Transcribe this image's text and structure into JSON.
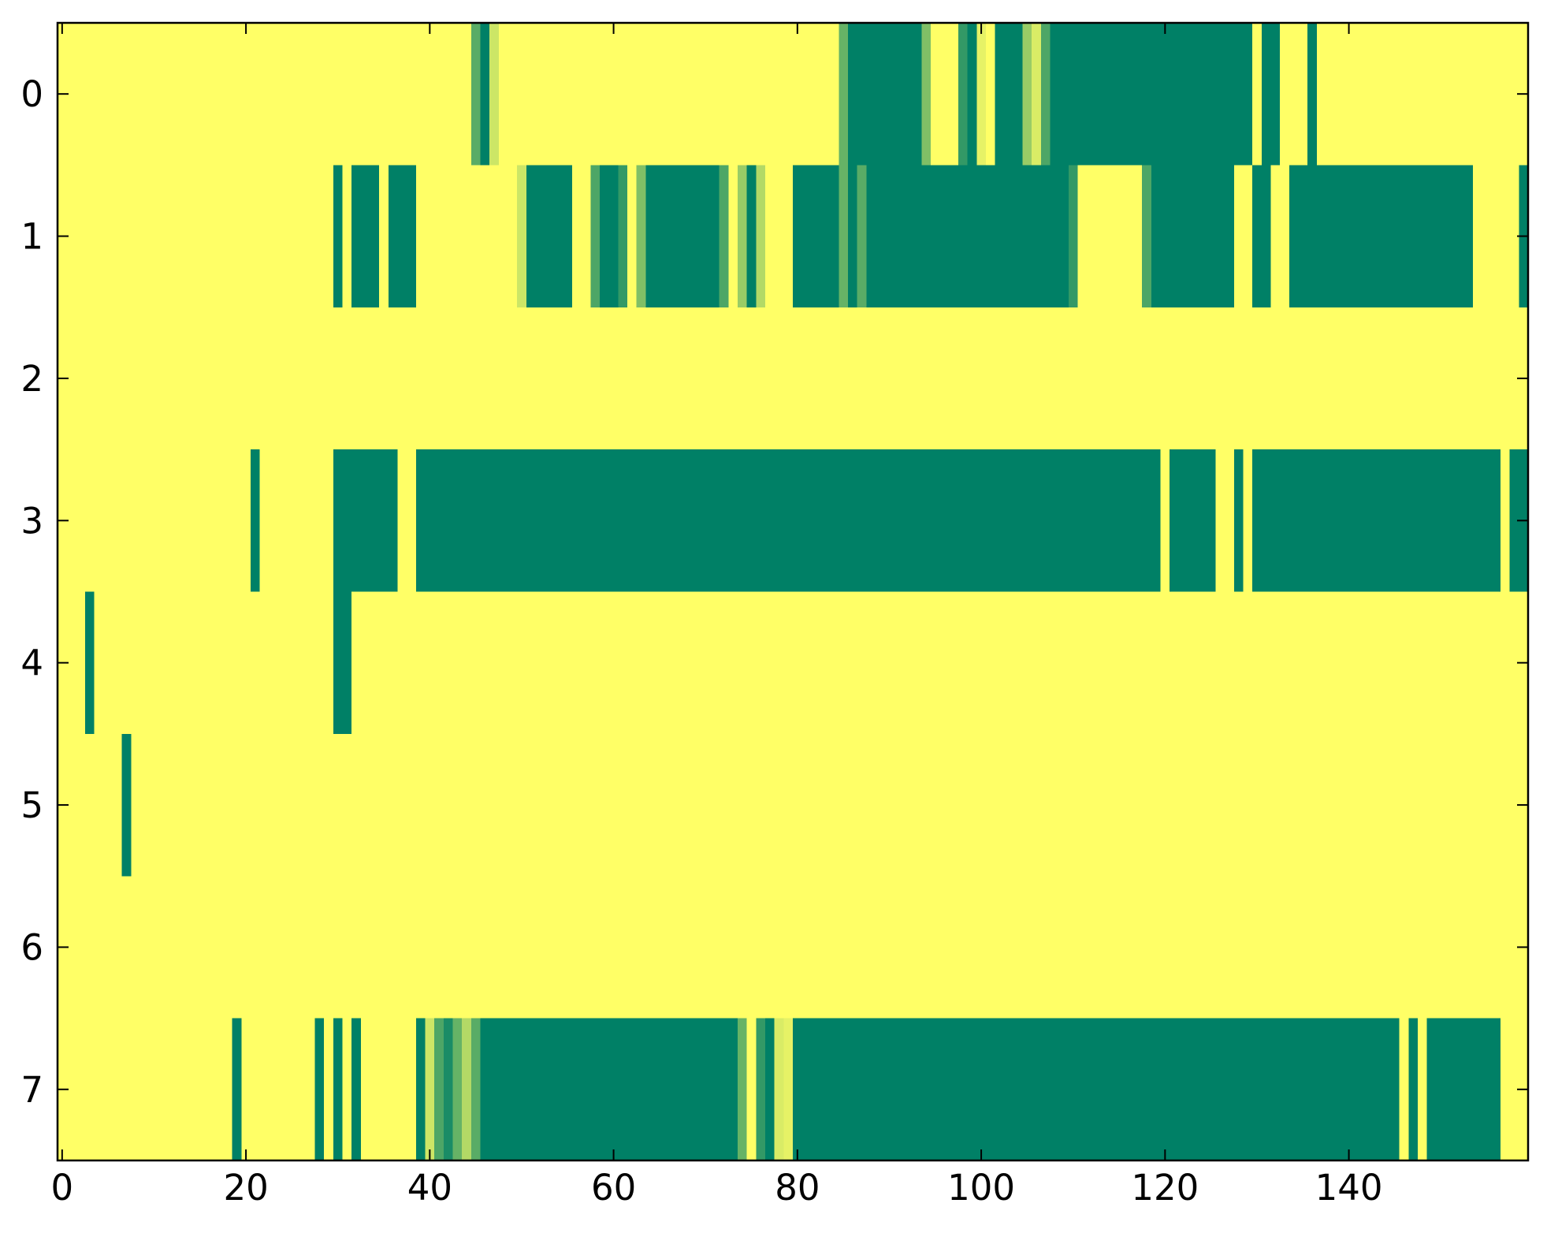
{
  "chart_data": {
    "type": "heatmap",
    "colormap": "summer",
    "xlim": [
      -0.5,
      159.5
    ],
    "ylim": [
      7.5,
      -0.5
    ],
    "xticks": [
      0,
      20,
      40,
      60,
      80,
      100,
      120,
      140
    ],
    "yticks": [
      0,
      1,
      2,
      3,
      4,
      5,
      6,
      7
    ],
    "z": [
      [
        1,
        1,
        1,
        1,
        1,
        1,
        1,
        1,
        1,
        1,
        1,
        1,
        1,
        1,
        1,
        1,
        1,
        1,
        1,
        1,
        1,
        1,
        1,
        1,
        1,
        1,
        1,
        1,
        1,
        1,
        1,
        1,
        1,
        1,
        1,
        1,
        1,
        1,
        1,
        1,
        1,
        1,
        1,
        1,
        1,
        0.35,
        0,
        0.8,
        1,
        1,
        1,
        1,
        1,
        1,
        1,
        1,
        1,
        1,
        1,
        1,
        1,
        1,
        1,
        1,
        1,
        1,
        1,
        1,
        1,
        1,
        1,
        1,
        1,
        1,
        1,
        1,
        1,
        1,
        1,
        1,
        1,
        1,
        1,
        1,
        1,
        0.4,
        0,
        0,
        0,
        0,
        0,
        0,
        0,
        0,
        0.5,
        1,
        1,
        1,
        0.2,
        0,
        0.9,
        1,
        0,
        0,
        0,
        0.6,
        0.85,
        0.3,
        0,
        0,
        0,
        0,
        0,
        0,
        0,
        0,
        0,
        0,
        0,
        0,
        0,
        0,
        0,
        0,
        0,
        0,
        0,
        0,
        0,
        0,
        1,
        0,
        0,
        1,
        1,
        1,
        0,
        1,
        1,
        1,
        1,
        1,
        1,
        1,
        1,
        1,
        1,
        1,
        1,
        1,
        1,
        1,
        1,
        1,
        1,
        1,
        1,
        1,
        1,
        1
      ],
      [
        1,
        1,
        1,
        1,
        1,
        1,
        1,
        1,
        1,
        1,
        1,
        1,
        1,
        1,
        1,
        1,
        1,
        1,
        1,
        1,
        1,
        1,
        1,
        1,
        1,
        1,
        1,
        1,
        1,
        1,
        0,
        1,
        0,
        0,
        0,
        1,
        0,
        0,
        0,
        1,
        1,
        1,
        1,
        1,
        1,
        1,
        1,
        1,
        1,
        1,
        0.8,
        0,
        0,
        0,
        0,
        0,
        1,
        1,
        0.3,
        0,
        0,
        0.2,
        1,
        0.5,
        0,
        0,
        0,
        0,
        0,
        0,
        0,
        0,
        0.3,
        1,
        0.6,
        0,
        0.7,
        1,
        1,
        1,
        0,
        0,
        0,
        0,
        0,
        0.4,
        0,
        0.35,
        0,
        0,
        0,
        0,
        0,
        0,
        0,
        0,
        0,
        0,
        0,
        0,
        0,
        0,
        0,
        0,
        0,
        0,
        0,
        0,
        0,
        0,
        0.2,
        1,
        1,
        1,
        1,
        1,
        1,
        1,
        0.3,
        0,
        0,
        0,
        0,
        0,
        0,
        0,
        0,
        0,
        1,
        1,
        0,
        0,
        1,
        1,
        0,
        0,
        0,
        0,
        0,
        0,
        0,
        0,
        0,
        0,
        0,
        0,
        0,
        0,
        0,
        0,
        0,
        0,
        0,
        0,
        1,
        1,
        1,
        1,
        1,
        0
      ],
      [
        1,
        1,
        1,
        1,
        1,
        1,
        1,
        1,
        1,
        1,
        1,
        1,
        1,
        1,
        1,
        1,
        1,
        1,
        1,
        1,
        1,
        1,
        1,
        1,
        1,
        1,
        1,
        1,
        1,
        1,
        1,
        1,
        1,
        1,
        1,
        1,
        1,
        1,
        1,
        1,
        1,
        1,
        1,
        1,
        1,
        1,
        1,
        1,
        1,
        1,
        1,
        1,
        1,
        1,
        1,
        1,
        1,
        1,
        1,
        1,
        1,
        1,
        1,
        1,
        1,
        1,
        1,
        1,
        1,
        1,
        1,
        1,
        1,
        1,
        1,
        1,
        1,
        1,
        1,
        1,
        1,
        1,
        1,
        1,
        1,
        1,
        1,
        1,
        1,
        1,
        1,
        1,
        1,
        1,
        1,
        1,
        1,
        1,
        1,
        1,
        1,
        1,
        1,
        1,
        1,
        1,
        1,
        1,
        1,
        1,
        1,
        1,
        1,
        1,
        1,
        1,
        1,
        1,
        1,
        1,
        1,
        1,
        1,
        1,
        1,
        1,
        1,
        1,
        1,
        1,
        1,
        1,
        1,
        1,
        1,
        1,
        1,
        1,
        1,
        1,
        1,
        1,
        1,
        1,
        1,
        1,
        1,
        1,
        1,
        1,
        1,
        1,
        1,
        1,
        1,
        1,
        1,
        1,
        1,
        1
      ],
      [
        1,
        1,
        1,
        1,
        1,
        1,
        1,
        1,
        1,
        1,
        1,
        1,
        1,
        1,
        1,
        1,
        1,
        1,
        1,
        1,
        1,
        0,
        1,
        1,
        1,
        1,
        1,
        1,
        1,
        1,
        0,
        0,
        0,
        0,
        0,
        0,
        0,
        1,
        1,
        0,
        0,
        0,
        0,
        0,
        0,
        0,
        0,
        0,
        0,
        0,
        0,
        0,
        0,
        0,
        0,
        0,
        0,
        0,
        0,
        0,
        0,
        0,
        0,
        0,
        0,
        0,
        0,
        0,
        0,
        0,
        0,
        0,
        0,
        0,
        0,
        0,
        0,
        0,
        0,
        0,
        0,
        0,
        0,
        0,
        0,
        0,
        0,
        0,
        0,
        0,
        0,
        0,
        0,
        0,
        0,
        0,
        0,
        0,
        0,
        0,
        0,
        0,
        0,
        0,
        0,
        0,
        0,
        0,
        0,
        0,
        0,
        0,
        0,
        0,
        0,
        0,
        0,
        0,
        0,
        0,
        1,
        0,
        0,
        0,
        0,
        0,
        1,
        1,
        0,
        1,
        0,
        0,
        0,
        0,
        0,
        0,
        0,
        0,
        0,
        0,
        0,
        0,
        0,
        0,
        0,
        0,
        0,
        0,
        0,
        0,
        0,
        0,
        0,
        0,
        0,
        0,
        0,
        1,
        0,
        0
      ],
      [
        1,
        1,
        1,
        0,
        1,
        1,
        1,
        1,
        1,
        1,
        1,
        1,
        1,
        1,
        1,
        1,
        1,
        1,
        1,
        1,
        1,
        1,
        1,
        1,
        1,
        1,
        1,
        1,
        1,
        1,
        0,
        0,
        1,
        1,
        1,
        1,
        1,
        1,
        1,
        1,
        1,
        1,
        1,
        1,
        1,
        1,
        1,
        1,
        1,
        1,
        1,
        1,
        1,
        1,
        1,
        1,
        1,
        1,
        1,
        1,
        1,
        1,
        1,
        1,
        1,
        1,
        1,
        1,
        1,
        1,
        1,
        1,
        1,
        1,
        1,
        1,
        1,
        1,
        1,
        1,
        1,
        1,
        1,
        1,
        1,
        1,
        1,
        1,
        1,
        1,
        1,
        1,
        1,
        1,
        1,
        1,
        1,
        1,
        1,
        1,
        1,
        1,
        1,
        1,
        1,
        1,
        1,
        1,
        1,
        1,
        1,
        1,
        1,
        1,
        1,
        1,
        1,
        1,
        1,
        1,
        1,
        1,
        1,
        1,
        1,
        1,
        1,
        1,
        1,
        1,
        1,
        1,
        1,
        1,
        1,
        1,
        1,
        1,
        1,
        1,
        1,
        1,
        1,
        1,
        1,
        1,
        1,
        1,
        1,
        1,
        1,
        1,
        1,
        1,
        1,
        1,
        1,
        1,
        1,
        1
      ],
      [
        1,
        1,
        1,
        1,
        1,
        1,
        1,
        0,
        1,
        1,
        1,
        1,
        1,
        1,
        1,
        1,
        1,
        1,
        1,
        1,
        1,
        1,
        1,
        1,
        1,
        1,
        1,
        1,
        1,
        1,
        1,
        1,
        1,
        1,
        1,
        1,
        1,
        1,
        1,
        1,
        1,
        1,
        1,
        1,
        1,
        1,
        1,
        1,
        1,
        1,
        1,
        1,
        1,
        1,
        1,
        1,
        1,
        1,
        1,
        1,
        1,
        1,
        1,
        1,
        1,
        1,
        1,
        1,
        1,
        1,
        1,
        1,
        1,
        1,
        1,
        1,
        1,
        1,
        1,
        1,
        1,
        1,
        1,
        1,
        1,
        1,
        1,
        1,
        1,
        1,
        1,
        1,
        1,
        1,
        1,
        1,
        1,
        1,
        1,
        1,
        1,
        1,
        1,
        1,
        1,
        1,
        1,
        1,
        1,
        1,
        1,
        1,
        1,
        1,
        1,
        1,
        1,
        1,
        1,
        1,
        1,
        1,
        1,
        1,
        1,
        1,
        1,
        1,
        1,
        1,
        1,
        1,
        1,
        1,
        1,
        1,
        1,
        1,
        1,
        1,
        1,
        1,
        1,
        1,
        1,
        1,
        1,
        1,
        1,
        1,
        1,
        1,
        1,
        1,
        1,
        1,
        1,
        1,
        1,
        1
      ],
      [
        1,
        1,
        1,
        1,
        1,
        1,
        1,
        1,
        1,
        1,
        1,
        1,
        1,
        1,
        1,
        1,
        1,
        1,
        1,
        1,
        1,
        1,
        1,
        1,
        1,
        1,
        1,
        1,
        1,
        1,
        1,
        1,
        1,
        1,
        1,
        1,
        1,
        1,
        1,
        1,
        1,
        1,
        1,
        1,
        1,
        1,
        1,
        1,
        1,
        1,
        1,
        1,
        1,
        1,
        1,
        1,
        1,
        1,
        1,
        1,
        1,
        1,
        1,
        1,
        1,
        1,
        1,
        1,
        1,
        1,
        1,
        1,
        1,
        1,
        1,
        1,
        1,
        1,
        1,
        1,
        1,
        1,
        1,
        1,
        1,
        1,
        1,
        1,
        1,
        1,
        1,
        1,
        1,
        1,
        1,
        1,
        1,
        1,
        1,
        1,
        1,
        1,
        1,
        1,
        1,
        1,
        1,
        1,
        1,
        1,
        1,
        1,
        1,
        1,
        1,
        1,
        1,
        1,
        1,
        1,
        1,
        1,
        1,
        1,
        1,
        1,
        1,
        1,
        1,
        1,
        1,
        1,
        1,
        1,
        1,
        1,
        1,
        1,
        1,
        1,
        1,
        1,
        1,
        1,
        1,
        1,
        1,
        1,
        1,
        1,
        1,
        1,
        1,
        1,
        1,
        1,
        1,
        1,
        1,
        1
      ],
      [
        1,
        1,
        1,
        1,
        1,
        1,
        1,
        1,
        1,
        1,
        1,
        1,
        1,
        1,
        1,
        1,
        1,
        1,
        1,
        0,
        1,
        1,
        1,
        1,
        1,
        1,
        1,
        1,
        0,
        1,
        0,
        1,
        0,
        1,
        1,
        1,
        1,
        1,
        1,
        0,
        0.8,
        0.3,
        0.1,
        0.4,
        0.7,
        0.35,
        0,
        0,
        0,
        0,
        0,
        0,
        0,
        0,
        0,
        0,
        0,
        0,
        0,
        0,
        0,
        0,
        0,
        0,
        0,
        0,
        0,
        0,
        0,
        0,
        0,
        0,
        0,
        0,
        0.4,
        1,
        0.2,
        0,
        0.85,
        0.9,
        0,
        0,
        0,
        0,
        0,
        0,
        0,
        0,
        0,
        0,
        0,
        0,
        0,
        0,
        0,
        0,
        0,
        0,
        0,
        0,
        0,
        0,
        0,
        0,
        0,
        0,
        0,
        0,
        0,
        0,
        0,
        0,
        0,
        0,
        0,
        0,
        0,
        0,
        0,
        0,
        0,
        0,
        0,
        0,
        0,
        0,
        0,
        0,
        0,
        0,
        0,
        0,
        0,
        0,
        0,
        0,
        0,
        0,
        0,
        0,
        0,
        0,
        0,
        0,
        0,
        0,
        1,
        0,
        1,
        0,
        0,
        0,
        0,
        0,
        0,
        0,
        0,
        1,
        1,
        1
      ]
    ]
  }
}
